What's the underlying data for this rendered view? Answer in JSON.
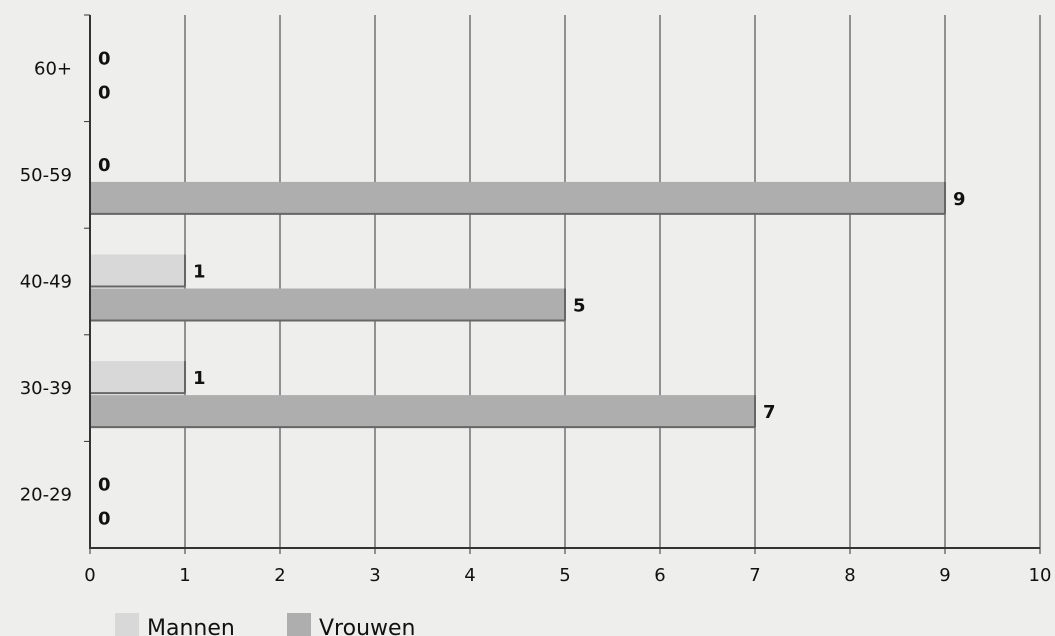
{
  "chart_data": {
    "type": "bar",
    "orientation": "horizontal",
    "categories": [
      "60+",
      "50-59",
      "40-49",
      "30-39",
      "20-29"
    ],
    "series": [
      {
        "name": "Mannen",
        "values": [
          0,
          0,
          1,
          1,
          0
        ],
        "color": "#d8d8d8"
      },
      {
        "name": "Vrouwen",
        "values": [
          0,
          9,
          5,
          7,
          0
        ],
        "color": "#aeaeae"
      }
    ],
    "xlim": [
      0,
      10
    ],
    "xticks": [
      "0",
      "1",
      "2",
      "3",
      "4",
      "5",
      "6",
      "7",
      "8",
      "9",
      "10"
    ],
    "grid": true,
    "legend_position": "bottom-left",
    "background": "#eeeeed",
    "grid_color": "#333333"
  }
}
